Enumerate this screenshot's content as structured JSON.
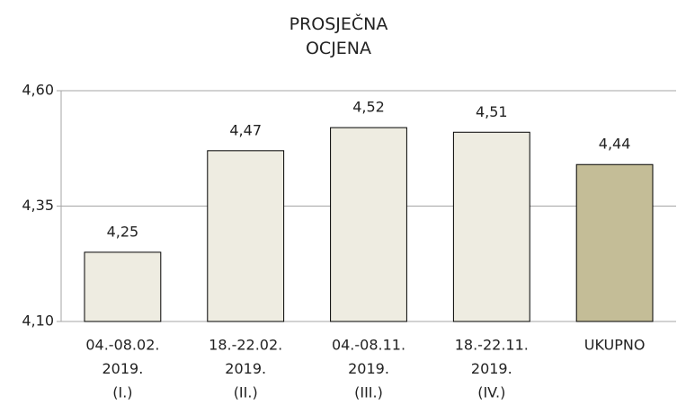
{
  "chart_data": {
    "type": "bar",
    "title": "PROSJEČNA OCJENA",
    "categories": [
      [
        "04.-08.02.",
        "2019.",
        "(I.)"
      ],
      [
        "18.-22.02.",
        "2019.",
        "(II.)"
      ],
      [
        "04.-08.11.",
        "2019.",
        "(III.)"
      ],
      [
        "18.-22.11.",
        "2019.",
        "(IV.)"
      ],
      [
        "UKUPNO"
      ]
    ],
    "values": [
      4.25,
      4.47,
      4.52,
      4.51,
      4.44
    ],
    "value_labels": [
      "4,25",
      "4,47",
      "4,52",
      "4,51",
      "4,44"
    ],
    "colors": [
      "#eeece1",
      "#eeece1",
      "#eeece1",
      "#eeece1",
      "#c4bd97"
    ],
    "ylim": [
      4.1,
      4.6
    ],
    "yticks": [
      {
        "value": 4.1,
        "label": "4,10"
      },
      {
        "value": 4.35,
        "label": "4,35"
      },
      {
        "value": 4.6,
        "label": "4,60"
      }
    ],
    "grid": true
  }
}
